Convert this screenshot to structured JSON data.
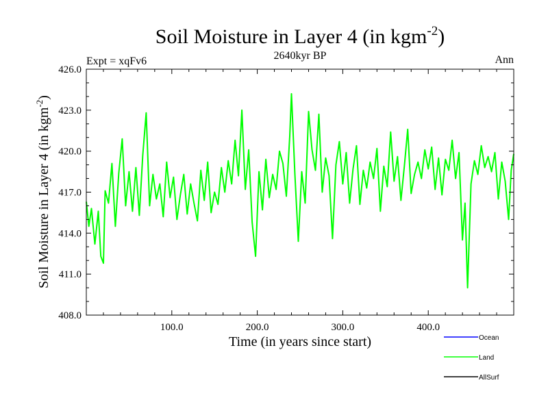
{
  "chart_data": {
    "type": "line",
    "title": "Soil Moisture in Layer 4 (in kgm",
    "title_sup": "-2",
    "title_close": ")",
    "subtitle": "2640kyr BP",
    "left_label": "Expt = xqFv6",
    "right_label": "Ann",
    "xlabel": "Time (in years since start)",
    "ylabel": "Soil Moisture in Layer 4 (in kgm",
    "ylabel_sup": "-2",
    "ylabel_close": ")",
    "xlim": [
      0,
      500
    ],
    "ylim": [
      408,
      426
    ],
    "xticks": [
      100,
      200,
      300,
      400
    ],
    "xtick_labels": [
      "100.0",
      "200.0",
      "300.0",
      "400.0"
    ],
    "yticks": [
      408,
      411,
      414,
      417,
      420,
      423,
      426
    ],
    "ytick_labels": [
      "408.0",
      "411.0",
      "414.0",
      "417.0",
      "420.0",
      "423.0",
      "426.0"
    ],
    "series": [
      {
        "name": "Ocean",
        "color": "#0000ff",
        "x": [],
        "values": []
      },
      {
        "name": "Land",
        "color": "#00ff00",
        "x": [
          0,
          3,
          6,
          10,
          14,
          17,
          20,
          22,
          26,
          30,
          34,
          38,
          42,
          46,
          50,
          54,
          58,
          62,
          66,
          70,
          74,
          78,
          82,
          86,
          90,
          94,
          98,
          102,
          106,
          110,
          114,
          118,
          122,
          126,
          130,
          134,
          138,
          142,
          146,
          150,
          154,
          158,
          162,
          166,
          170,
          174,
          178,
          182,
          186,
          190,
          194,
          198,
          202,
          206,
          210,
          214,
          218,
          222,
          226,
          230,
          234,
          238,
          240,
          244,
          248,
          252,
          256,
          260,
          264,
          268,
          272,
          276,
          280,
          284,
          288,
          292,
          296,
          300,
          304,
          308,
          312,
          316,
          320,
          324,
          328,
          332,
          336,
          340,
          344,
          348,
          352,
          356,
          360,
          364,
          368,
          372,
          376,
          380,
          384,
          388,
          392,
          396,
          400,
          404,
          408,
          412,
          416,
          420,
          424,
          428,
          432,
          436,
          440,
          443,
          446,
          450,
          454,
          458,
          462,
          466,
          470,
          474,
          478,
          482,
          486,
          490,
          494,
          497,
          500
        ],
        "values": [
          416.3,
          414.5,
          415.8,
          413.2,
          415.6,
          412.3,
          411.8,
          417.1,
          416.2,
          419.1,
          414.5,
          418.4,
          420.9,
          416.0,
          418.5,
          415.6,
          418.8,
          415.3,
          419.7,
          422.8,
          416.0,
          418.3,
          416.5,
          417.6,
          415.2,
          419.2,
          416.6,
          418.1,
          415.0,
          416.8,
          418.3,
          415.4,
          417.6,
          416.2,
          414.9,
          418.6,
          416.4,
          419.2,
          415.5,
          417.0,
          416.1,
          418.8,
          417.0,
          419.3,
          417.6,
          420.8,
          418.2,
          423.0,
          417.2,
          420.1,
          414.8,
          412.3,
          418.5,
          415.7,
          419.4,
          416.6,
          418.3,
          417.2,
          420.0,
          419.1,
          416.7,
          421.1,
          424.2,
          418.3,
          413.4,
          418.5,
          416.2,
          422.9,
          420.1,
          418.6,
          422.7,
          417.0,
          419.5,
          418.2,
          413.6,
          419.0,
          420.7,
          417.6,
          419.9,
          416.2,
          418.7,
          420.4,
          416.1,
          418.6,
          417.3,
          419.2,
          418.0,
          420.2,
          415.6,
          418.9,
          417.4,
          421.4,
          417.8,
          419.6,
          416.4,
          418.9,
          421.6,
          416.9,
          418.3,
          419.2,
          418.0,
          420.1,
          418.7,
          420.3,
          417.2,
          419.5,
          416.8,
          419.4,
          418.6,
          420.8,
          418.0,
          419.9,
          413.5,
          416.2,
          410.0,
          417.6,
          419.3,
          418.3,
          420.4,
          418.8,
          419.6,
          418.5,
          419.9,
          416.5,
          419.2,
          417.8,
          415.0,
          418.6,
          419.8
        ]
      },
      {
        "name": "AllSurf",
        "color": "#000000",
        "x": [],
        "values": []
      }
    ]
  }
}
